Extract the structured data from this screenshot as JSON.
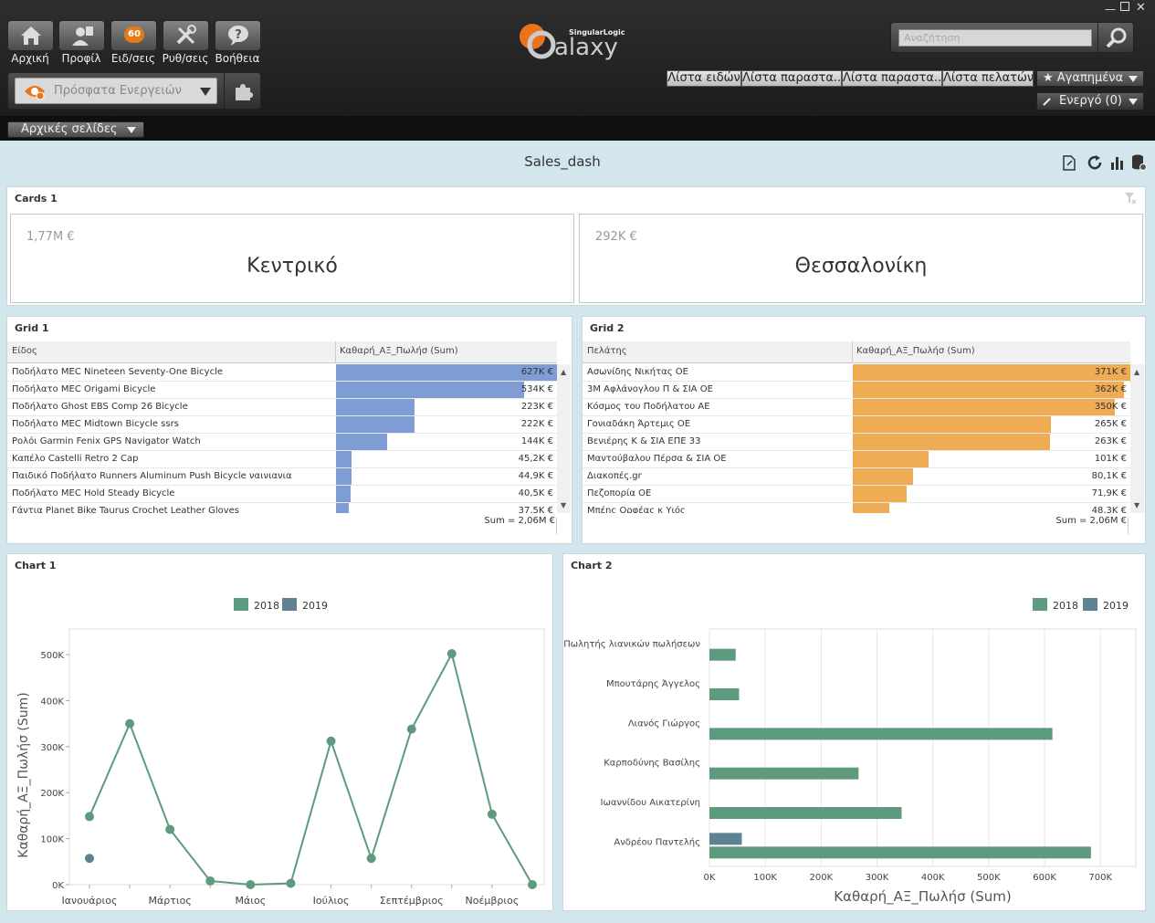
{
  "nav": {
    "home": "Αρχική",
    "profile": "Προφίλ",
    "notifications": "Ειδ/σεις",
    "settings": "Ρυθ/σεις",
    "help": "Βοήθεια",
    "badge": "60",
    "recent": "Πρόσφατα Ενεργειών",
    "home_pages": "Αρχικές σελίδες"
  },
  "brand": {
    "name": "alaxy",
    "company": "SingularLogic"
  },
  "search": {
    "placeholder": "Αναζήτηση"
  },
  "quicktabs": [
    "Λίστα ειδών",
    "Λίστα παραστα...",
    "Λίστα παραστα...",
    "Λίστα πελατών"
  ],
  "favorites": "★ Αγαπημένα",
  "active": "Ενεργό (0)",
  "dashboard": {
    "title": "Sales_dash"
  },
  "cards": {
    "title": "Cards 1",
    "items": [
      {
        "value": "1,77M €",
        "name": "Κεντρικό"
      },
      {
        "value": "292K €",
        "name": "Θεσσαλονίκη"
      }
    ]
  },
  "grid1": {
    "title": "Grid 1",
    "col1": "Είδος",
    "col2": "Καθαρή_ΑΞ_Πωλήσ (Sum)",
    "sum": "Sum = 2,06M €",
    "rows": [
      {
        "name": "Ποδήλατο MEC Nineteen Seventy-One Bicycle",
        "value": "627K €",
        "amount": 627
      },
      {
        "name": "Ποδήλατο MEC Origami Bicycle",
        "value": "534K €",
        "amount": 534
      },
      {
        "name": "Ποδήλατο Ghost EBS Comp 26 Bicycle",
        "value": "223K €",
        "amount": 223
      },
      {
        "name": "Ποδήλατο MEC Midtown Bicycle ssrs",
        "value": "222K €",
        "amount": 222
      },
      {
        "name": "Ρολόι Garmin Fenix GPS Navigator Watch",
        "value": "144K €",
        "amount": 144
      },
      {
        "name": "Καπέλο Castelli Retro 2 Cap",
        "value": "45,2K €",
        "amount": 45.2
      },
      {
        "name": "Παιδικό Ποδήλατο Runners Aluminum Push Bicycle  ναινιανια",
        "value": "44,9K €",
        "amount": 44.9
      },
      {
        "name": "Ποδήλατο MEC Hold Steady Bicycle",
        "value": "40,5K €",
        "amount": 40.5
      },
      {
        "name": "Γάντια Planet Bike Taurus Crochet Leather Gloves",
        "value": "37,5K €",
        "amount": 37.5
      }
    ]
  },
  "grid2": {
    "title": "Grid 2",
    "col1": "Πελάτης",
    "col2": "Καθαρή_ΑΞ_Πωλήσ (Sum)",
    "sum": "Sum = 2,06M €",
    "rows": [
      {
        "name": "Ασωνίδης Νικήτας ΟΕ",
        "value": "371K €",
        "amount": 371
      },
      {
        "name": "3M Αφλάνογλου Π & ΣΙΑ ΟΕ",
        "value": "362K €",
        "amount": 362
      },
      {
        "name": "Κόσμος του Ποδήλατου ΑΕ",
        "value": "350K €",
        "amount": 350
      },
      {
        "name": "Γονιαδάκη Άρτεμις ΟΕ",
        "value": "265K €",
        "amount": 265
      },
      {
        "name": "Βενιέρης Κ & ΣΙΑ ΕΠΕ 33",
        "value": "263K €",
        "amount": 263
      },
      {
        "name": "Μαντούβαλου Πέρσα & ΣΙΑ ΟΕ",
        "value": "101K €",
        "amount": 101
      },
      {
        "name": "Διακοπές.gr",
        "value": "80,1K €",
        "amount": 80.1
      },
      {
        "name": "Πεζοπορία ΟΕ",
        "value": "71,9K €",
        "amount": 71.9
      },
      {
        "name": "Μπέης Ορφέας κ Υιός",
        "value": "48,3K €",
        "amount": 48.3
      }
    ]
  },
  "chart_data": [
    {
      "title": "Chart 1",
      "type": "line",
      "ylabel": "Καθαρή_ΑΞ_Πωλήσ (Sum)",
      "ylim": [
        0,
        500000
      ],
      "yticks": [
        "0K",
        "100K",
        "200K",
        "300K",
        "400K",
        "500K"
      ],
      "xticks": [
        "Ιανουάριος",
        "Μάρτιος",
        "Μάιος",
        "Ιούλιος",
        "Σεπτέμβριος",
        "Νοέμβριος"
      ],
      "categories": [
        "1",
        "2",
        "3",
        "4",
        "5",
        "6",
        "7",
        "8",
        "9",
        "10",
        "11",
        "12"
      ],
      "legend_position": "top-center",
      "series": [
        {
          "name": "2018",
          "color": "#5e9a7e",
          "values": [
            148000,
            350000,
            120000,
            8000,
            0,
            3000,
            312000,
            57000,
            338000,
            502000,
            153000,
            0
          ]
        },
        {
          "name": "2019",
          "color": "#5e8291",
          "values": [
            57000,
            null,
            null,
            null,
            null,
            null,
            null,
            null,
            null,
            null,
            null,
            null
          ]
        }
      ]
    },
    {
      "title": "Chart 2",
      "type": "bar",
      "orientation": "horizontal",
      "xlabel": "Καθαρή_ΑΞ_Πωλήσ (Sum)",
      "xlim": [
        0,
        700000
      ],
      "xticks": [
        "0K",
        "100K",
        "200K",
        "300K",
        "400K",
        "500K",
        "600K",
        "700K"
      ],
      "categories": [
        "Πωλητής λιανικών πωλήσεων",
        "Μπουτάρης Άγγελος",
        "Λιανός Γιώργος",
        "Καρποδύνης Βασίλης",
        "Ιωαννίδου Αικατερίνη",
        "Ανδρέου Παντελής"
      ],
      "legend_position": "top-right",
      "series": [
        {
          "name": "2018",
          "color": "#5e9a7e",
          "values": [
            47000,
            53000,
            614000,
            267000,
            344000,
            683000
          ]
        },
        {
          "name": "2019",
          "color": "#5e8291",
          "values": [
            null,
            null,
            null,
            null,
            null,
            58000
          ]
        }
      ]
    }
  ]
}
